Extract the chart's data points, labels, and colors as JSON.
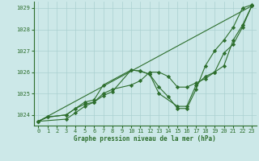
{
  "title": "Graphe pression niveau de la mer (hPa)",
  "bg_color": "#cce8e8",
  "grid_color": "#aad0d0",
  "line_color": "#2d6e2d",
  "marker": "D",
  "markersize": 2.2,
  "linewidth": 0.8,
  "xlim": [
    -0.5,
    23.5
  ],
  "ylim": [
    1023.5,
    1029.3
  ],
  "yticks": [
    1024,
    1025,
    1026,
    1027,
    1028,
    1029
  ],
  "xticks": [
    0,
    1,
    2,
    3,
    4,
    5,
    6,
    7,
    8,
    9,
    10,
    11,
    12,
    13,
    14,
    15,
    16,
    17,
    18,
    19,
    20,
    21,
    22,
    23
  ],
  "tick_fontsize": 5.0,
  "xlabel_fontsize": 5.5,
  "lines": [
    {
      "x": [
        0,
        1,
        3,
        4,
        5,
        6,
        7,
        8,
        10,
        11,
        12,
        13,
        14,
        15,
        16,
        17,
        18,
        19,
        20,
        21,
        22,
        23
      ],
      "y": [
        1023.7,
        1023.9,
        1024.0,
        1024.3,
        1024.5,
        1024.6,
        1024.9,
        1025.1,
        1026.1,
        1026.05,
        1025.9,
        1025.3,
        1024.85,
        1024.3,
        1024.3,
        1025.2,
        1026.3,
        1027.0,
        1027.5,
        1028.1,
        1029.0,
        1029.15
      ]
    },
    {
      "x": [
        0,
        3,
        4,
        5,
        6,
        7,
        8,
        10,
        11,
        12,
        13,
        14,
        15,
        16,
        17,
        18,
        19,
        20,
        21,
        22,
        23
      ],
      "y": [
        1023.7,
        1023.8,
        1024.1,
        1024.4,
        1024.6,
        1025.0,
        1025.2,
        1025.4,
        1025.6,
        1026.0,
        1026.0,
        1025.8,
        1025.3,
        1025.3,
        1025.5,
        1025.7,
        1026.0,
        1026.3,
        1027.5,
        1028.2,
        1029.1
      ]
    },
    {
      "x": [
        0,
        1,
        3,
        4,
        5,
        6,
        7,
        10,
        11,
        12,
        13,
        15,
        16,
        17,
        18,
        19,
        20,
        21,
        22,
        23
      ],
      "y": [
        1023.7,
        1023.9,
        1024.0,
        1024.3,
        1024.6,
        1024.7,
        1025.4,
        1026.1,
        1026.05,
        1025.9,
        1025.0,
        1024.4,
        1024.4,
        1025.4,
        1025.8,
        1026.0,
        1026.9,
        1027.3,
        1028.1,
        1029.1
      ]
    },
    {
      "x": [
        0,
        23
      ],
      "y": [
        1023.7,
        1029.1
      ]
    }
  ]
}
